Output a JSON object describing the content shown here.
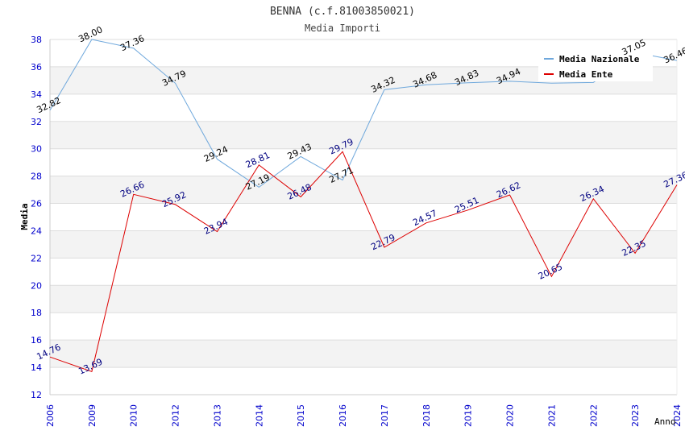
{
  "chart_data": {
    "type": "line",
    "title": "BENNA (c.f.81003850021)",
    "subtitle": "Media Importi",
    "xlabel": "Anno",
    "ylabel": "Media",
    "ylim": [
      12,
      38
    ],
    "yticks": [
      12,
      14,
      16,
      18,
      20,
      22,
      24,
      26,
      28,
      30,
      32,
      34,
      36,
      38
    ],
    "categories": [
      "2006",
      "2009",
      "2010",
      "2012",
      "2013",
      "2014",
      "2015",
      "2016",
      "2017",
      "2018",
      "2019",
      "2020",
      "2021",
      "2022",
      "2023",
      "2024"
    ],
    "grid": true,
    "legend_position": "top-right",
    "series": [
      {
        "name": "Media Nazionale",
        "color": "#6fa8dc",
        "label_color": "#000000",
        "values": [
          32.82,
          38.0,
          37.36,
          34.79,
          29.24,
          27.19,
          29.43,
          27.71,
          34.32,
          34.68,
          34.83,
          34.94,
          34.8,
          34.85,
          37.05,
          36.46
        ],
        "labels": [
          "32.82",
          "38.00",
          "37.36",
          "34.79",
          "29.24",
          "27.19",
          "29.43",
          "27.71",
          "34.32",
          "34.68",
          "34.83",
          "34.94",
          "",
          "",
          "37.05",
          "36.46"
        ]
      },
      {
        "name": "Media Ente",
        "color": "#dd0000",
        "label_color": "#000080",
        "values": [
          14.76,
          13.69,
          26.66,
          25.92,
          23.94,
          28.81,
          26.48,
          29.79,
          22.79,
          24.57,
          25.51,
          26.62,
          20.65,
          26.34,
          22.35,
          27.36
        ],
        "labels": [
          "14.76",
          "13.69",
          "26.66",
          "25.92",
          "23.94",
          "28.81",
          "26.48",
          "29.79",
          "22.79",
          "24.57",
          "25.51",
          "26.62",
          "20.65",
          "26.34",
          "22.35",
          "27.36"
        ]
      }
    ]
  }
}
